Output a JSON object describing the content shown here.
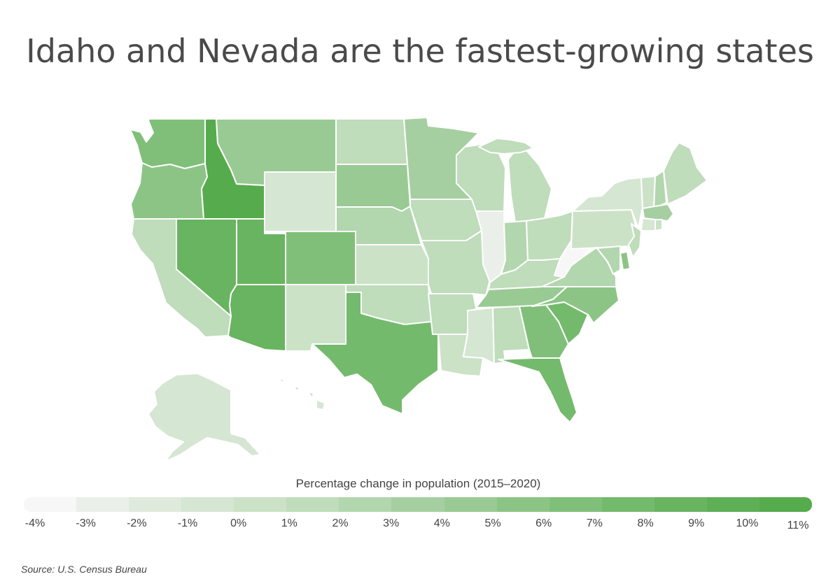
{
  "title": "Idaho and Nevada are the fastest-growing states",
  "legend": {
    "title": "Percentage change in population (2015–2020)",
    "ticks": [
      "-4%",
      "-3%",
      "-2%",
      "-1%",
      "0%",
      "1%",
      "2%",
      "3%",
      "4%",
      "5%",
      "6%",
      "7%",
      "8%",
      "9%",
      "10%",
      "11%"
    ],
    "colors": [
      "#f6f7f6",
      "#eaf0e9",
      "#dfeadd",
      "#d5e6d2",
      "#cbe2c7",
      "#bfdcbb",
      "#b2d6ad",
      "#a5cfa0",
      "#99ca93",
      "#8cc486",
      "#80bf79",
      "#74ba6c",
      "#68b460",
      "#5eaf55",
      "#56ab4c"
    ]
  },
  "source": "Source:  U.S. Census Bureau",
  "states": [
    {
      "id": "WA",
      "change": 6.0
    },
    {
      "id": "OR",
      "change": 5.0
    },
    {
      "id": "CA",
      "change": 1.0
    },
    {
      "id": "ID",
      "change": 10.5
    },
    {
      "id": "NV",
      "change": 8.5
    },
    {
      "id": "UT",
      "change": 8.5
    },
    {
      "id": "AZ",
      "change": 8.0
    },
    {
      "id": "MT",
      "change": 4.0
    },
    {
      "id": "WY",
      "change": -1.0
    },
    {
      "id": "CO",
      "change": 6.0
    },
    {
      "id": "NM",
      "change": 0.0
    },
    {
      "id": "ND",
      "change": 1.5
    },
    {
      "id": "SD",
      "change": 4.0
    },
    {
      "id": "NE",
      "change": 2.5
    },
    {
      "id": "KS",
      "change": 0.5
    },
    {
      "id": "OK",
      "change": 1.0
    },
    {
      "id": "TX",
      "change": 7.0
    },
    {
      "id": "MN",
      "change": 3.0
    },
    {
      "id": "IA",
      "change": 1.5
    },
    {
      "id": "MO",
      "change": 1.5
    },
    {
      "id": "AR",
      "change": 1.5
    },
    {
      "id": "LA",
      "change": 0.0
    },
    {
      "id": "WI",
      "change": 1.5
    },
    {
      "id": "IL",
      "change": -2.5
    },
    {
      "id": "MI",
      "change": 1.0
    },
    {
      "id": "IN",
      "change": 2.5
    },
    {
      "id": "OH",
      "change": 1.0
    },
    {
      "id": "KY",
      "change": 1.5
    },
    {
      "id": "TN",
      "change": 4.0
    },
    {
      "id": "MS",
      "change": -0.5
    },
    {
      "id": "AL",
      "change": 1.0
    },
    {
      "id": "GA",
      "change": 6.0
    },
    {
      "id": "FL",
      "change": 7.5
    },
    {
      "id": "SC",
      "change": 7.5
    },
    {
      "id": "NC",
      "change": 5.5
    },
    {
      "id": "VA",
      "change": 2.5
    },
    {
      "id": "WV",
      "change": -3.5
    },
    {
      "id": "PA",
      "change": 0.0
    },
    {
      "id": "NY",
      "change": -1.0
    },
    {
      "id": "VT",
      "change": 0.0
    },
    {
      "id": "NH",
      "change": 2.5
    },
    {
      "id": "ME",
      "change": 1.5
    },
    {
      "id": "MA",
      "change": 3.0
    },
    {
      "id": "CT",
      "change": -0.5
    },
    {
      "id": "RI",
      "change": 0.5
    },
    {
      "id": "NJ",
      "change": 1.0
    },
    {
      "id": "DE",
      "change": 5.0
    },
    {
      "id": "MD",
      "change": 2.5
    },
    {
      "id": "AK",
      "change": -0.5
    },
    {
      "id": "HI",
      "change": -0.5
    }
  ]
}
